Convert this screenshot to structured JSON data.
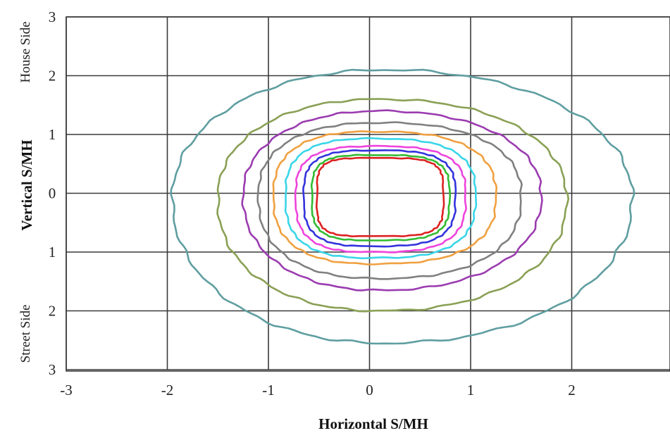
{
  "chart_data": {
    "type": "line",
    "title": "",
    "xlabel": "Horizontal  S/MH",
    "ylabel": "Vertical  S/MH",
    "side_labels": {
      "top": "House Side",
      "bottom": "Street Side"
    },
    "xlim": [
      -3,
      3
    ],
    "ylim": [
      -3,
      3
    ],
    "x_ticks": [
      {
        "value": -3,
        "label": "-3"
      },
      {
        "value": -2,
        "label": "-2"
      },
      {
        "value": -1,
        "label": "-1"
      },
      {
        "value": 0,
        "label": "0"
      },
      {
        "value": 1,
        "label": "1"
      },
      {
        "value": 2,
        "label": "2"
      }
    ],
    "y_ticks": [
      {
        "value": 3,
        "label": "3"
      },
      {
        "value": 2,
        "label": "2"
      },
      {
        "value": 1,
        "label": "1"
      },
      {
        "value": 0,
        "label": "0"
      },
      {
        "value": -1,
        "label": "1"
      },
      {
        "value": -2,
        "label": "2"
      },
      {
        "value": -3,
        "label": "3"
      }
    ],
    "grid": true,
    "legend": "none",
    "series": [
      {
        "color": "#5f9ea0",
        "cx": 0.15,
        "cy": -0.1,
        "rx_left": 2.1,
        "rx_right": 2.45,
        "ry_top": 2.2,
        "ry_bottom": 2.45,
        "n": 2.1
      },
      {
        "color": "#8aa055",
        "cx": 0.1,
        "cy": -0.1,
        "rx_left": 1.6,
        "rx_right": 1.85,
        "ry_top": 1.7,
        "ry_bottom": 1.9,
        "n": 2.2
      },
      {
        "color": "#9b3cb0",
        "cx": 0.1,
        "cy": -0.05,
        "rx_left": 1.35,
        "rx_right": 1.6,
        "ry_top": 1.45,
        "ry_bottom": 1.6,
        "n": 2.2
      },
      {
        "color": "#808080",
        "cx": 0.1,
        "cy": -0.05,
        "rx_left": 1.2,
        "rx_right": 1.4,
        "ry_top": 1.25,
        "ry_bottom": 1.4,
        "n": 2.4
      },
      {
        "color": "#f0a040",
        "cx": 0.05,
        "cy": -0.05,
        "rx_left": 1.0,
        "rx_right": 1.2,
        "ry_top": 1.1,
        "ry_bottom": 1.15,
        "n": 2.6
      },
      {
        "color": "#39d6e8",
        "cx": 0.05,
        "cy": -0.05,
        "rx_left": 0.88,
        "rx_right": 1.0,
        "ry_top": 0.98,
        "ry_bottom": 1.05,
        "n": 2.8
      },
      {
        "color": "#ee44dd",
        "cx": 0.05,
        "cy": -0.05,
        "rx_left": 0.78,
        "rx_right": 0.9,
        "ry_top": 0.85,
        "ry_bottom": 0.95,
        "n": 3.0
      },
      {
        "color": "#3333dd",
        "cx": 0.05,
        "cy": -0.05,
        "rx_left": 0.7,
        "rx_right": 0.8,
        "ry_top": 0.78,
        "ry_bottom": 0.85,
        "n": 3.2
      },
      {
        "color": "#33bb33",
        "cx": 0.05,
        "cy": -0.05,
        "rx_left": 0.62,
        "rx_right": 0.74,
        "ry_top": 0.7,
        "ry_bottom": 0.75,
        "n": 3.6
      },
      {
        "color": "#dd2222",
        "cx": 0.05,
        "cy": -0.05,
        "rx_left": 0.57,
        "rx_right": 0.68,
        "ry_top": 0.65,
        "ry_bottom": 0.68,
        "n": 4.2
      }
    ]
  }
}
